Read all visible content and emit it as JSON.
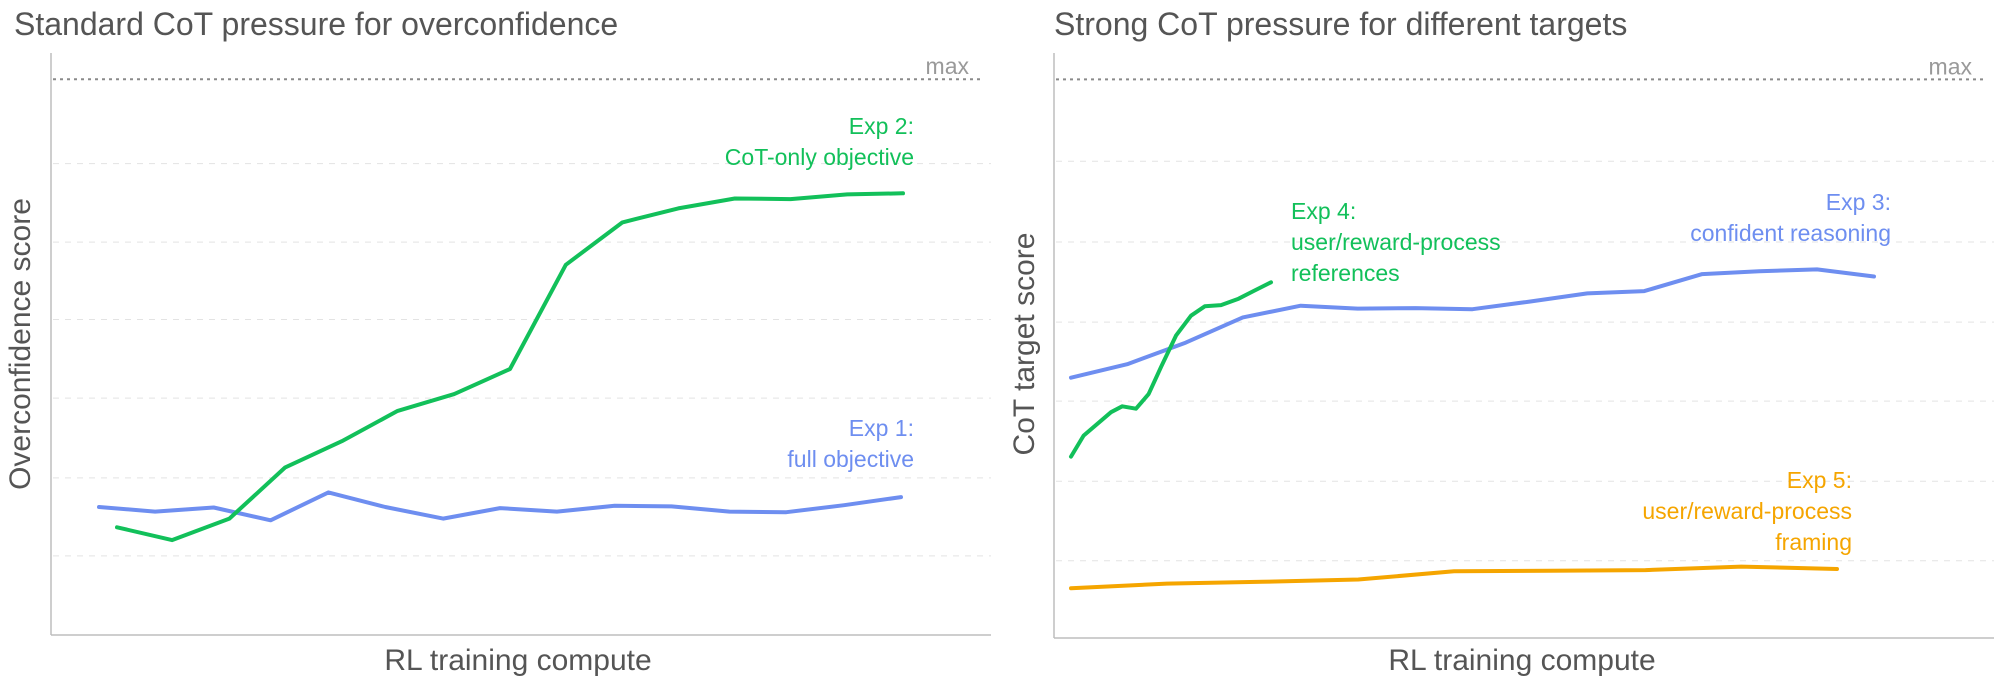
{
  "colors": {
    "blue": "#6e8ef0",
    "green": "#12c05a",
    "orange": "#f5a500"
  },
  "chart_data": [
    {
      "type": "line",
      "title": "Standard CoT pressure for overconfidence",
      "xlabel": "RL training compute",
      "ylabel": "Overconfidence score",
      "xlim": [
        0,
        1
      ],
      "ylim": [
        0,
        1
      ],
      "max_label": "max",
      "max_value": 0.955,
      "grid": true,
      "grid_values": [
        0.136,
        0.27,
        0.407,
        0.542,
        0.675,
        0.81
      ],
      "series": [
        {
          "color_key": "blue",
          "annotation": [
            "Exp 1:",
            "full objective"
          ],
          "x": [
            0.0,
            0.07,
            0.143,
            0.214,
            0.286,
            0.357,
            0.429,
            0.5,
            0.571,
            0.643,
            0.714,
            0.786,
            0.857,
            0.929,
            1.0
          ],
          "y": [
            0.22,
            0.212,
            0.219,
            0.197,
            0.245,
            0.22,
            0.2,
            0.218,
            0.212,
            0.222,
            0.221,
            0.212,
            0.211,
            0.223,
            0.237
          ]
        },
        {
          "color_key": "green",
          "annotation": [
            "Exp 2:",
            "CoT-only objective"
          ],
          "x": [
            0.0,
            0.07,
            0.143,
            0.214,
            0.286,
            0.357,
            0.429,
            0.5,
            0.571,
            0.643,
            0.714,
            0.786,
            0.857,
            0.929,
            1.0
          ],
          "y": [
            0.185,
            0.163,
            0.2,
            0.288,
            0.333,
            0.385,
            0.414,
            0.457,
            0.636,
            0.709,
            0.733,
            0.75,
            0.749,
            0.757,
            0.759
          ]
        }
      ]
    },
    {
      "type": "line",
      "title": "Strong CoT pressure for different targets",
      "xlabel": "RL training compute",
      "ylabel": "CoT target score",
      "xlim": [
        0,
        1
      ],
      "ylim": [
        0,
        1
      ],
      "max_label": "max",
      "max_value": 0.955,
      "grid": true,
      "grid_values": [
        0.132,
        0.268,
        0.405,
        0.54,
        0.677,
        0.815
      ],
      "series": [
        {
          "color_key": "blue",
          "annotation": [
            "Exp 3:",
            "confident reasoning"
          ],
          "x": [
            0.0,
            0.07,
            0.143,
            0.214,
            0.286,
            0.357,
            0.429,
            0.5,
            0.571,
            0.643,
            0.714,
            0.786,
            0.857,
            0.929,
            1.0
          ],
          "y": [
            0.445,
            0.468,
            0.505,
            0.548,
            0.568,
            0.563,
            0.564,
            0.562,
            0.575,
            0.589,
            0.593,
            0.622,
            0.627,
            0.63,
            0.618
          ]
        },
        {
          "color_key": "orange",
          "annotation": [
            "Exp 5:",
            "user/reward-process",
            "framing"
          ],
          "x": [
            0.0,
            0.125,
            0.25,
            0.375,
            0.5,
            0.625,
            0.75,
            0.875,
            1.0
          ],
          "y": [
            0.085,
            0.093,
            0.096,
            0.1,
            0.114,
            0.115,
            0.116,
            0.122,
            0.118
          ]
        },
        {
          "color_key": "green",
          "annotation": [
            "Exp 4:",
            "user/reward-process",
            "references"
          ],
          "x": [
            0.0,
            0.063,
            0.2,
            0.256,
            0.325,
            0.388,
            0.45,
            0.525,
            0.6,
            0.669,
            0.75,
            0.838,
            0.912,
            1.0
          ],
          "y": [
            0.31,
            0.346,
            0.386,
            0.396,
            0.392,
            0.417,
            0.463,
            0.517,
            0.551,
            0.567,
            0.569,
            0.58,
            0.593,
            0.608
          ]
        }
      ]
    }
  ]
}
